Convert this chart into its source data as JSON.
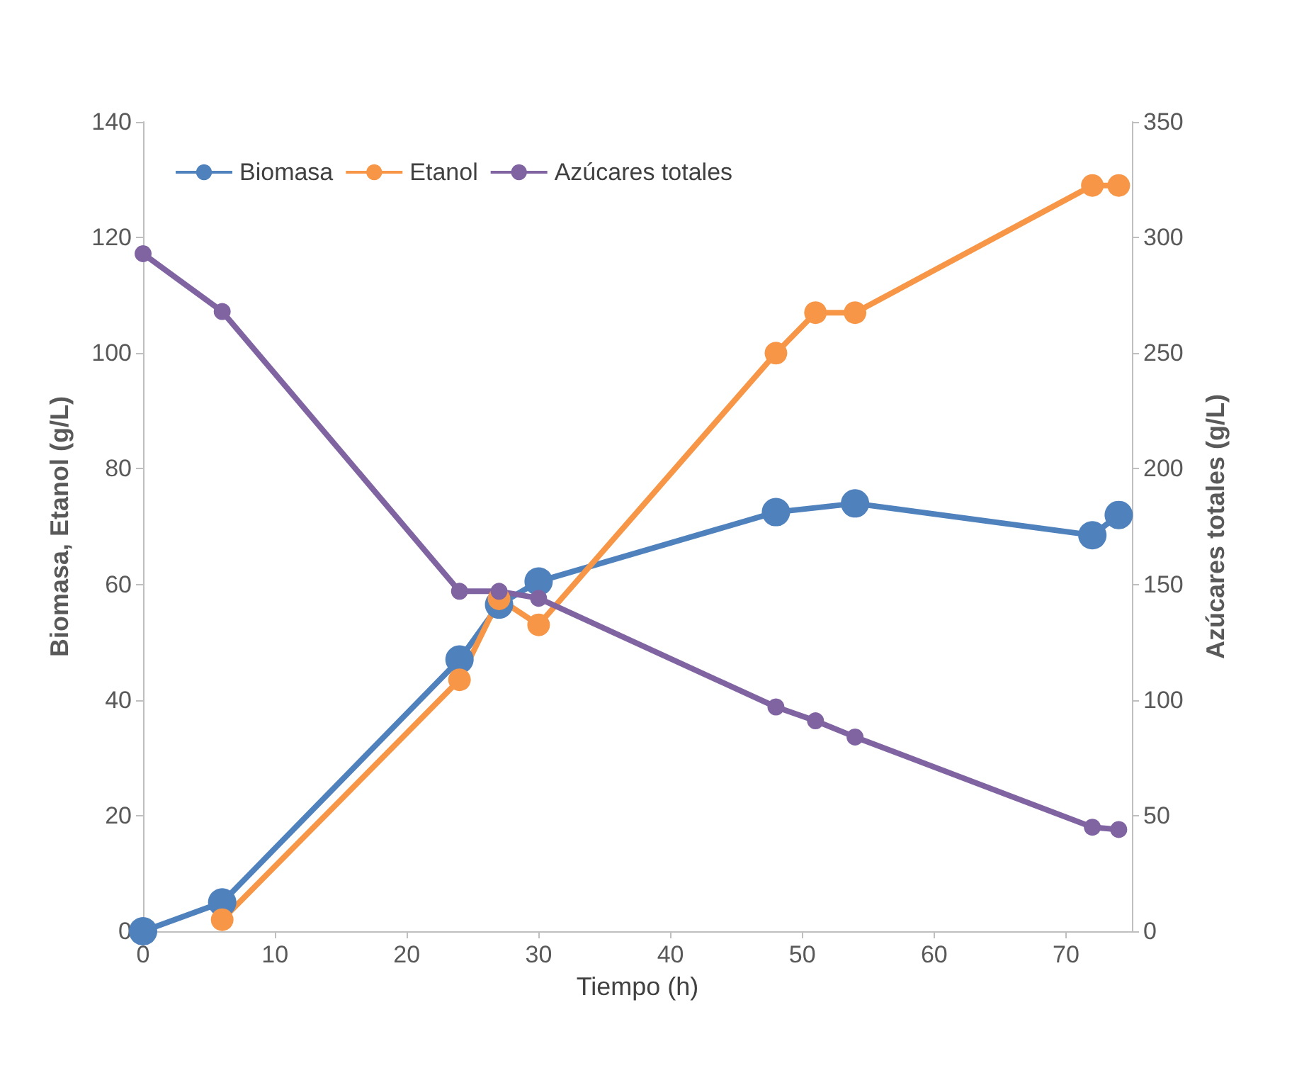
{
  "chart_data": {
    "type": "line",
    "xlabel": "Tiempo (h)",
    "ylabel": "Biomasa, Etanol (g/L)",
    "y2label": "Azúcares totales (g/L)",
    "xlim": [
      0,
      75
    ],
    "xticks": [
      0,
      10,
      20,
      30,
      40,
      50,
      60,
      70
    ],
    "ylim": [
      0,
      140
    ],
    "yticks": [
      0,
      20,
      40,
      60,
      80,
      100,
      120,
      140
    ],
    "y2lim": [
      0,
      350
    ],
    "y2ticks": [
      0,
      50,
      100,
      150,
      200,
      250,
      300,
      350
    ],
    "grid": false,
    "legend": "top left",
    "marker": "circle",
    "line_style": "solid",
    "series": [
      {
        "name": "Biomasa",
        "color": "#4f81bd",
        "x": [
          0,
          6,
          24,
          27,
          30,
          48,
          54,
          72,
          74
        ],
        "values": [
          0,
          5,
          47,
          56.5,
          60.5,
          72.5,
          74,
          68.5,
          72
        ]
      },
      {
        "name": "Etanol",
        "color": "#f79646",
        "x": [
          6,
          24,
          27,
          30,
          48,
          51,
          54,
          72,
          74
        ],
        "values": [
          2,
          43.5,
          57.5,
          53,
          100,
          107,
          107,
          129,
          129
        ]
      },
      {
        "name": "Azúcares totales",
        "color": "#8064a2",
        "axis": "y2",
        "x": [
          0,
          6,
          24,
          27,
          30,
          48,
          51,
          54,
          72,
          74
        ],
        "values": [
          293,
          268,
          147,
          147,
          144,
          97,
          91,
          84,
          45,
          44
        ]
      }
    ]
  }
}
